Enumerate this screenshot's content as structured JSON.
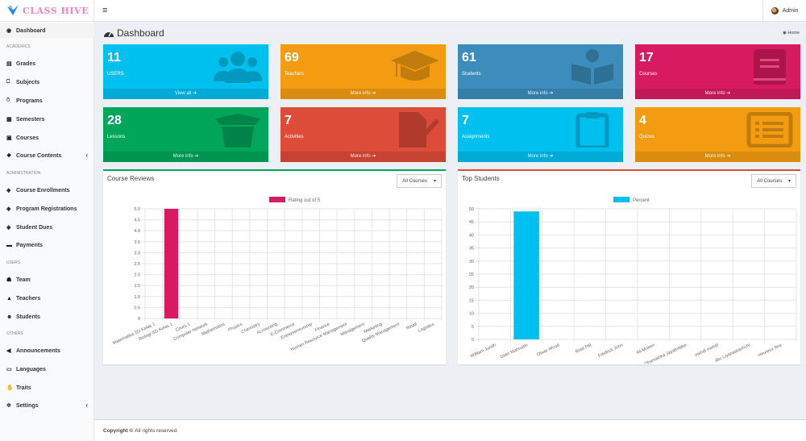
{
  "app": {
    "logo_text": "CLASS HIVE",
    "user": "Admin"
  },
  "sidebar": {
    "items": [
      {
        "label": "Dashboard",
        "icon": "dashboard-icon",
        "glyph": "◉",
        "active": true
      },
      {
        "label": "Grades",
        "icon": "grades-icon",
        "glyph": "▤"
      },
      {
        "label": "Subjects",
        "icon": "bookmark-icon",
        "glyph": "⎕"
      },
      {
        "label": "Programs",
        "icon": "award-icon",
        "glyph": "⍥"
      },
      {
        "label": "Semesters",
        "icon": "calendar-icon",
        "glyph": "▦"
      },
      {
        "label": "Courses",
        "icon": "book-icon",
        "glyph": "▣"
      },
      {
        "label": "Course Contents",
        "icon": "cubes-icon",
        "glyph": "❖",
        "chevron": "‹"
      },
      {
        "label": "Course Enrollments",
        "icon": "cube-icon",
        "glyph": "◈"
      },
      {
        "label": "Program Registrations",
        "icon": "cube-icon",
        "glyph": "◈"
      },
      {
        "label": "Student Dues",
        "icon": "cube-icon",
        "glyph": "◈"
      },
      {
        "label": "Payments",
        "icon": "money-icon",
        "glyph": "▬"
      },
      {
        "label": "Team",
        "icon": "users-icon",
        "glyph": "☗"
      },
      {
        "label": "Teachers",
        "icon": "graduation-cap-icon",
        "glyph": "▲"
      },
      {
        "label": "Students",
        "icon": "child-icon",
        "glyph": "☻"
      },
      {
        "label": "Announcements",
        "icon": "bullhorn-icon",
        "glyph": "◀"
      },
      {
        "label": "Languages",
        "icon": "language-icon",
        "glyph": "▭"
      },
      {
        "label": "Traits",
        "icon": "thumbs-up-icon",
        "glyph": "✋"
      },
      {
        "label": "Settings",
        "icon": "cogs-icon",
        "glyph": "✲",
        "chevron": "‹"
      }
    ],
    "sections": [
      "ACADEMICS",
      "ADMINISTRATION",
      "USERS",
      "OTHERS"
    ]
  },
  "page": {
    "title": "Dashboard",
    "breadcrumb": "Home"
  },
  "stats": [
    {
      "value": "11",
      "label": "USERS",
      "link": "View all",
      "color": "#00c0ef",
      "icon": "users-icon"
    },
    {
      "value": "69",
      "label": "Teachers",
      "link": "More info",
      "color": "#f39c12",
      "icon": "graduation-cap-icon"
    },
    {
      "value": "61",
      "label": "Students",
      "link": "More info",
      "color": "#3c8dbc",
      "icon": "student-reading-icon"
    },
    {
      "value": "17",
      "label": "Courses",
      "link": "More info",
      "color": "#d81b60",
      "icon": "book-icon"
    },
    {
      "value": "28",
      "label": "Lessons",
      "link": "More info",
      "color": "#00a65a",
      "icon": "box-open-icon"
    },
    {
      "value": "7",
      "label": "Activities",
      "link": "More info",
      "color": "#dd4b39",
      "icon": "file-signature-icon"
    },
    {
      "value": "7",
      "label": "Assignments",
      "link": "More info",
      "color": "#00c0ef",
      "icon": "clipboard-icon"
    },
    {
      "value": "4",
      "label": "Quizes",
      "link": "More info",
      "color": "#f39c12",
      "icon": "list-alt-icon"
    }
  ],
  "panels": {
    "reviews": {
      "title": "Course Reviews",
      "filter": "All Courses",
      "border": "#00a65a"
    },
    "top_students": {
      "title": "Top Students",
      "filter": "All Courses",
      "border": "#dd4b39"
    }
  },
  "footer": {
    "copyright": "Copyright ©",
    "text": "All rights reserved."
  },
  "chart_data": [
    {
      "type": "bar",
      "legend": "Rating out of 5",
      "color": "#d81b60",
      "categories": [
        "Matematika SD Kelas 1",
        "Biologi SD Kelas 1",
        "Cours 1",
        "Computer Network",
        "Mathematics",
        "Physics",
        "Chemistry",
        "Accounting",
        "E-Commerce",
        "Entrepreneurship",
        "Finance",
        "Human Resource Management",
        "Management",
        "Marketing",
        "Quality Management",
        "Retail",
        "Logistics"
      ],
      "values": [
        0,
        5,
        0,
        0,
        0,
        0,
        0,
        0,
        0,
        0,
        0,
        0,
        0,
        0,
        0,
        0,
        0
      ],
      "ylim": [
        0,
        5
      ],
      "yticks": [
        "0",
        "0.5",
        "1.0",
        "1.5",
        "2.0",
        "2.5",
        "3.0",
        "3.5",
        "4.0",
        "4.5",
        "5.0"
      ]
    },
    {
      "type": "bar",
      "legend": "Percent",
      "color": "#00c0ef",
      "categories": [
        "William Jundh",
        "Didin Mahrudin",
        "Oliver Wood",
        "Brad Pitt",
        "Fredrick John",
        "Ali Moeen",
        "Dhanushka Jayathilake",
        "mehdi mehdi",
        "abc Liyanaarachchi",
        "Heureux Boy"
      ],
      "values": [
        0,
        49,
        0,
        0,
        0,
        0,
        0,
        0,
        0,
        0
      ],
      "ylim": [
        0,
        50
      ],
      "yticks": [
        "0",
        "5",
        "10",
        "15",
        "20",
        "25",
        "30",
        "35",
        "40",
        "45",
        "50"
      ]
    }
  ]
}
